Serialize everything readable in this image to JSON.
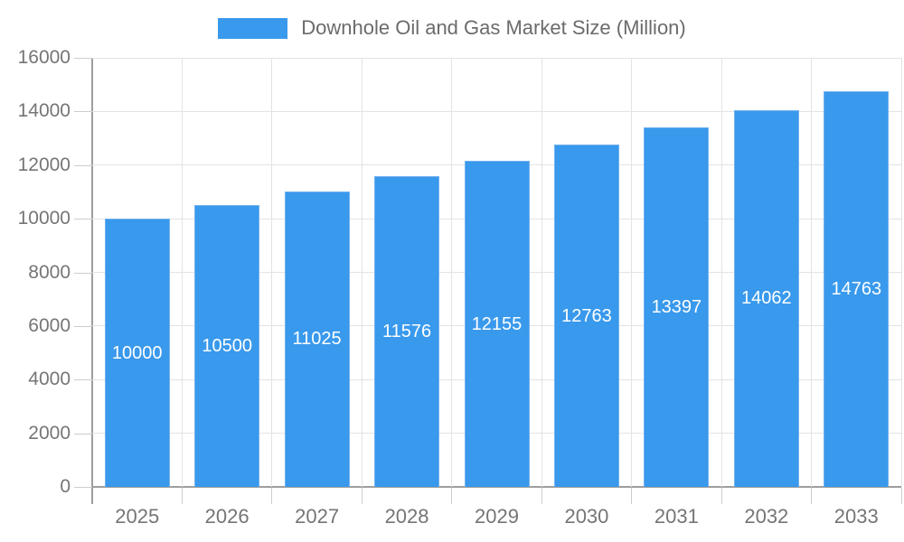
{
  "legend": {
    "label": "Downhole Oil and Gas Market Size (Million)"
  },
  "chart_data": {
    "type": "bar",
    "title": "Downhole Oil and Gas Market Size (Million)",
    "series_name": "Downhole Oil and Gas Market Size (Million)",
    "categories": [
      "2025",
      "2026",
      "2027",
      "2028",
      "2029",
      "2030",
      "2031",
      "2032",
      "2033"
    ],
    "values": [
      10000,
      10500,
      11025,
      11576,
      12155,
      12763,
      13397,
      14062,
      14763
    ],
    "value_labels": [
      "10000",
      "10500",
      "11025",
      "11576",
      "12155",
      "12763",
      "13397",
      "14062",
      "14763"
    ],
    "xlabel": "",
    "ylabel": "",
    "ylim": [
      0,
      16000
    ],
    "yticks": [
      0,
      2000,
      4000,
      6000,
      8000,
      10000,
      12000,
      14000,
      16000
    ],
    "grid": true,
    "legend_position": "top",
    "colors": {
      "bar_fill": "#3999ec",
      "bar_border": "#72b2ef",
      "value_label": "#ffffff",
      "gridline": "#e3e3e3",
      "axis_line": "#9e9e9e",
      "tick": "#cdcdcd",
      "axis_text": "#757575",
      "legend_text": "#6b6b6b"
    }
  }
}
